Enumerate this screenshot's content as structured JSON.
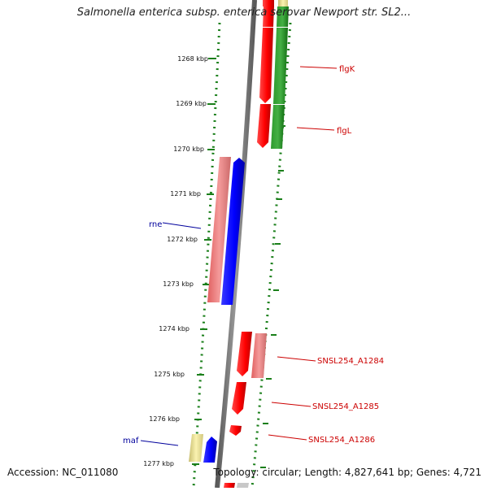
{
  "title": "Salmonella enterica subsp. enterica serovar Newport str. SL2...",
  "footer": {
    "accession": "Accession: NC_011080",
    "summary": "Topology: circular; Length: 4,827,641 bp; Genes: 4,721"
  },
  "ruler": {
    "labels": [
      "1268 kbp",
      "1269 kbp",
      "1270 kbp",
      "1271 kbp",
      "1272 kbp",
      "1273 kbp",
      "1274 kbp",
      "1275 kbp",
      "1276 kbp",
      "1277 kbp"
    ]
  },
  "gene_labels": {
    "flgK": "flgK",
    "flgL": "flgL",
    "rne": "rne",
    "SNSL254_A1284": "SNSL254_A1284",
    "SNSL254_A1285": "SNSL254_A1285",
    "SNSL254_A1286": "SNSL254_A1286",
    "maf": "maf"
  },
  "colors": {
    "forward_cds": "#ff0000",
    "forward_cds_light": "#f08080",
    "reverse_cds": "#0000ff",
    "rna_green": "#1e8a1e",
    "other_yellow": "#f0e68c",
    "backbone": "#808080",
    "label_red": "#cc0000",
    "label_blue": "#00009c",
    "dotted_green": "#1a7f1a"
  }
}
